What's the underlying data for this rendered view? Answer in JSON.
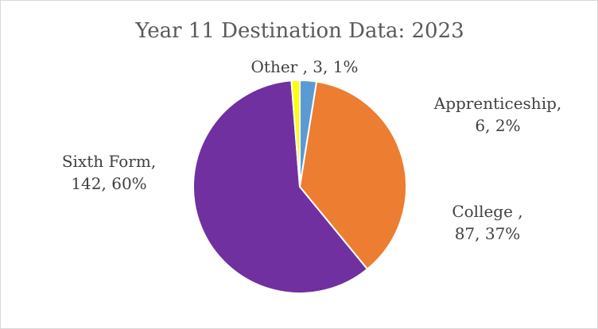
{
  "chart_data": {
    "type": "pie",
    "title": "Year 11 Destination Data: 2023",
    "categories": [
      "Apprenticeship",
      "College ",
      "Sixth Form",
      "Other "
    ],
    "values": [
      6,
      87,
      142,
      3
    ],
    "percent_labels": [
      "2%",
      "37%",
      "60%",
      "1%"
    ],
    "labels": {
      "apprenticeship": {
        "line1": "Apprenticeship,",
        "line2": "6, 2%"
      },
      "college": {
        "line1": "College ,",
        "line2": "87, 37%"
      },
      "sixth_form": {
        "line1": "Sixth Form,",
        "line2": "142, 60%"
      },
      "other": {
        "line1": "Other , 3, 1%"
      }
    },
    "colors": [
      "#5b9bd5",
      "#ed7d31",
      "#7030a0",
      "#ffff00"
    ],
    "legend": false
  }
}
